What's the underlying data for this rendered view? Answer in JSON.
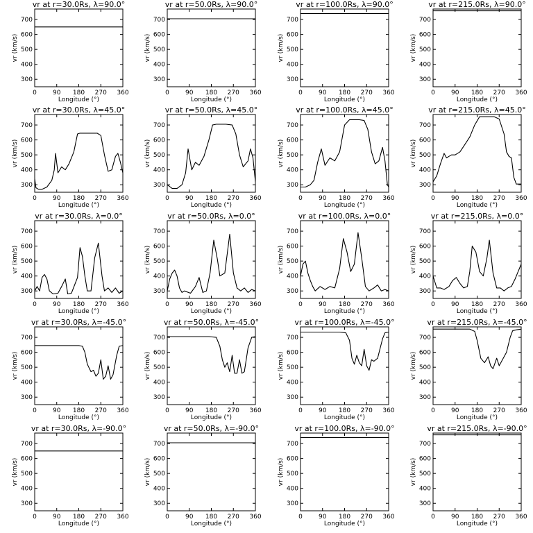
{
  "figure": {
    "y_axis": {
      "ticks": [
        300,
        400,
        500,
        600,
        700
      ],
      "range": [
        250,
        770
      ]
    },
    "x_axis": {
      "ticks": [
        0,
        90,
        180,
        270,
        360
      ],
      "range": [
        0,
        360
      ]
    },
    "xlabel": "Longitude (°)",
    "ylabel": "vr (km/s)",
    "line_color": "#000000",
    "background": "#ffffff"
  },
  "chart_data": [
    {
      "type": "line",
      "title": "vr at r=30.0Rs, λ=90.0°",
      "xlabel": "Longitude (°)",
      "ylabel": "vr (km/s)",
      "xlim": [
        0,
        360
      ],
      "ylim": [
        250,
        770
      ],
      "x": [
        0,
        360
      ],
      "y": [
        650,
        650
      ]
    },
    {
      "type": "line",
      "title": "vr at r=50.0Rs, λ=90.0°",
      "xlabel": "Longitude (°)",
      "ylabel": "vr (km/s)",
      "xlim": [
        0,
        360
      ],
      "ylim": [
        250,
        770
      ],
      "x": [
        0,
        360
      ],
      "y": [
        705,
        705
      ]
    },
    {
      "type": "line",
      "title": "vr at r=100.0Rs, λ=90.0°",
      "xlabel": "Longitude (°)",
      "ylabel": "vr (km/s)",
      "xlim": [
        0,
        360
      ],
      "ylim": [
        250,
        770
      ],
      "x": [
        0,
        360
      ],
      "y": [
        740,
        740
      ]
    },
    {
      "type": "line",
      "title": "vr at r=215.0Rs, λ=90.0°",
      "xlabel": "Longitude (°)",
      "ylabel": "vr (km/s)",
      "xlim": [
        0,
        360
      ],
      "ylim": [
        250,
        770
      ],
      "x": [
        0,
        360
      ],
      "y": [
        758,
        758
      ]
    },
    {
      "type": "line",
      "title": "vr at r=30.0Rs, λ=45.0°",
      "xlabel": "Longitude (°)",
      "ylabel": "vr (km/s)",
      "xlim": [
        0,
        360
      ],
      "ylim": [
        250,
        770
      ],
      "x": [
        0,
        5,
        15,
        30,
        50,
        70,
        80,
        85,
        95,
        110,
        125,
        140,
        160,
        175,
        185,
        200,
        230,
        255,
        270,
        285,
        300,
        315,
        330,
        340,
        350,
        360
      ],
      "y": [
        340,
        280,
        270,
        270,
        285,
        330,
        400,
        510,
        380,
        420,
        400,
        440,
        520,
        640,
        645,
        645,
        645,
        645,
        630,
        500,
        390,
        400,
        490,
        510,
        450,
        380
      ]
    },
    {
      "type": "line",
      "title": "vr at r=50.0Rs, λ=45.0°",
      "xlabel": "Longitude (°)",
      "ylabel": "vr (km/s)",
      "xlim": [
        0,
        360
      ],
      "ylim": [
        250,
        770
      ],
      "x": [
        0,
        20,
        40,
        60,
        75,
        85,
        100,
        115,
        130,
        150,
        170,
        185,
        200,
        240,
        265,
        280,
        295,
        310,
        330,
        340,
        350,
        360
      ],
      "y": [
        300,
        275,
        275,
        300,
        380,
        540,
        400,
        450,
        430,
        490,
        600,
        700,
        705,
        705,
        700,
        640,
        500,
        420,
        460,
        540,
        480,
        320
      ]
    },
    {
      "type": "line",
      "title": "vr at r=100.0Rs, λ=45.0°",
      "xlabel": "Longitude (°)",
      "ylabel": "vr (km/s)",
      "xlim": [
        0,
        360
      ],
      "ylim": [
        250,
        770
      ],
      "x": [
        0,
        20,
        40,
        55,
        70,
        85,
        100,
        120,
        140,
        160,
        180,
        200,
        240,
        260,
        275,
        290,
        305,
        320,
        335,
        345,
        355,
        360
      ],
      "y": [
        285,
        285,
        300,
        330,
        450,
        540,
        430,
        480,
        460,
        520,
        700,
        735,
        735,
        730,
        670,
        520,
        440,
        460,
        550,
        460,
        300,
        285
      ]
    },
    {
      "type": "line",
      "title": "vr at r=215.0Rs, λ=45.0°",
      "xlabel": "Longitude (°)",
      "ylabel": "vr (km/s)",
      "xlim": [
        0,
        360
      ],
      "ylim": [
        250,
        770
      ],
      "x": [
        0,
        15,
        30,
        45,
        55,
        65,
        75,
        90,
        110,
        130,
        150,
        170,
        190,
        250,
        270,
        290,
        300,
        310,
        320,
        330,
        340,
        360
      ],
      "y": [
        320,
        360,
        440,
        510,
        480,
        490,
        500,
        500,
        520,
        570,
        620,
        700,
        755,
        755,
        740,
        640,
        520,
        490,
        480,
        350,
        305,
        305
      ]
    },
    {
      "type": "line",
      "title": "vr at r=30.0Rs, λ=0.0°",
      "xlabel": "Longitude (°)",
      "ylabel": "vr (km/s)",
      "xlim": [
        0,
        360
      ],
      "ylim": [
        250,
        770
      ],
      "x": [
        0,
        10,
        20,
        30,
        40,
        50,
        60,
        75,
        95,
        110,
        125,
        135,
        150,
        175,
        185,
        195,
        205,
        215,
        230,
        245,
        260,
        275,
        285,
        300,
        315,
        330,
        345,
        360
      ],
      "y": [
        300,
        330,
        300,
        390,
        410,
        380,
        300,
        280,
        285,
        330,
        380,
        280,
        285,
        390,
        590,
        530,
        400,
        300,
        300,
        520,
        620,
        400,
        300,
        320,
        290,
        320,
        285,
        300
      ]
    },
    {
      "type": "line",
      "title": "vr at r=50.0Rs, λ=0.0°",
      "xlabel": "Longitude (°)",
      "ylabel": "vr (km/s)",
      "xlim": [
        0,
        360
      ],
      "ylim": [
        250,
        770
      ],
      "x": [
        0,
        10,
        20,
        30,
        40,
        50,
        60,
        70,
        95,
        115,
        130,
        145,
        160,
        175,
        190,
        205,
        215,
        235,
        255,
        270,
        285,
        300,
        315,
        330,
        345,
        360
      ],
      "y": [
        300,
        380,
        420,
        440,
        400,
        320,
        290,
        300,
        285,
        330,
        390,
        290,
        300,
        420,
        640,
        510,
        400,
        420,
        680,
        420,
        320,
        300,
        320,
        290,
        310,
        300
      ]
    },
    {
      "type": "line",
      "title": "vr at r=100.0Rs, λ=0.0°",
      "xlabel": "Longitude (°)",
      "ylabel": "vr (km/s)",
      "xlim": [
        0,
        360
      ],
      "ylim": [
        250,
        770
      ],
      "x": [
        0,
        10,
        20,
        30,
        40,
        50,
        60,
        80,
        100,
        120,
        140,
        160,
        175,
        190,
        205,
        220,
        235,
        250,
        265,
        280,
        300,
        315,
        330,
        345,
        360
      ],
      "y": [
        400,
        480,
        500,
        420,
        370,
        330,
        300,
        330,
        310,
        330,
        320,
        450,
        650,
        560,
        430,
        480,
        690,
        520,
        330,
        300,
        320,
        340,
        300,
        310,
        300
      ]
    },
    {
      "type": "line",
      "title": "vr at r=215.0Rs, λ=0.0°",
      "xlabel": "Longitude (°)",
      "ylabel": "vr (km/s)",
      "xlim": [
        0,
        360
      ],
      "ylim": [
        250,
        770
      ],
      "x": [
        0,
        15,
        30,
        45,
        65,
        80,
        95,
        110,
        125,
        140,
        150,
        160,
        175,
        190,
        205,
        220,
        230,
        245,
        260,
        275,
        290,
        305,
        320,
        335,
        345,
        360
      ],
      "y": [
        400,
        320,
        320,
        310,
        330,
        370,
        390,
        350,
        320,
        330,
        430,
        600,
        560,
        430,
        400,
        520,
        640,
        420,
        320,
        320,
        300,
        320,
        330,
        380,
        420,
        480
      ]
    },
    {
      "type": "line",
      "title": "vr at r=30.0Rs, λ=-45.0°",
      "xlabel": "Longitude (°)",
      "ylabel": "vr (km/s)",
      "xlim": [
        0,
        360
      ],
      "ylim": [
        250,
        770
      ],
      "x": [
        0,
        150,
        180,
        195,
        205,
        215,
        230,
        240,
        250,
        260,
        270,
        280,
        290,
        300,
        310,
        320,
        335,
        345,
        360
      ],
      "y": [
        645,
        645,
        645,
        640,
        600,
        520,
        470,
        480,
        440,
        460,
        550,
        420,
        440,
        510,
        420,
        450,
        580,
        640,
        645
      ]
    },
    {
      "type": "line",
      "title": "vr at r=50.0Rs, λ=-45.0°",
      "xlabel": "Longitude (°)",
      "ylabel": "vr (km/s)",
      "xlim": [
        0,
        360
      ],
      "ylim": [
        250,
        770
      ],
      "x": [
        0,
        170,
        200,
        215,
        225,
        235,
        245,
        255,
        265,
        275,
        285,
        295,
        305,
        315,
        330,
        345,
        360
      ],
      "y": [
        705,
        705,
        700,
        640,
        550,
        500,
        530,
        470,
        580,
        460,
        460,
        550,
        460,
        470,
        630,
        700,
        705
      ]
    },
    {
      "type": "line",
      "title": "vr at r=100.0Rs, λ=-45.0°",
      "xlabel": "Longitude (°)",
      "ylabel": "vr (km/s)",
      "xlim": [
        0,
        360
      ],
      "ylim": [
        250,
        770
      ],
      "x": [
        0,
        160,
        185,
        200,
        210,
        220,
        230,
        240,
        250,
        260,
        270,
        280,
        290,
        300,
        315,
        335,
        345,
        360
      ],
      "y": [
        735,
        735,
        730,
        680,
        560,
        520,
        580,
        530,
        510,
        620,
        510,
        480,
        550,
        540,
        560,
        690,
        730,
        735
      ]
    },
    {
      "type": "line",
      "title": "vr at r=215.0Rs, λ=-45.0°",
      "xlabel": "Longitude (°)",
      "ylabel": "vr (km/s)",
      "xlim": [
        0,
        360
      ],
      "ylim": [
        250,
        770
      ],
      "x": [
        0,
        150,
        170,
        180,
        195,
        210,
        225,
        235,
        245,
        260,
        270,
        280,
        300,
        315,
        325,
        340,
        360
      ],
      "y": [
        755,
        755,
        740,
        680,
        560,
        530,
        570,
        510,
        490,
        560,
        510,
        540,
        600,
        700,
        745,
        750,
        755
      ]
    },
    {
      "type": "line",
      "title": "vr at r=30.0Rs, λ=-90.0°",
      "xlabel": "Longitude (°)",
      "ylabel": "vr (km/s)",
      "xlim": [
        0,
        360
      ],
      "ylim": [
        250,
        770
      ],
      "x": [
        0,
        360
      ],
      "y": [
        650,
        650
      ]
    },
    {
      "type": "line",
      "title": "vr at r=50.0Rs, λ=-90.0°",
      "xlabel": "Longitude (°)",
      "ylabel": "vr (km/s)",
      "xlim": [
        0,
        360
      ],
      "ylim": [
        250,
        770
      ],
      "x": [
        0,
        360
      ],
      "y": [
        705,
        705
      ]
    },
    {
      "type": "line",
      "title": "vr at r=100.0Rs, λ=-90.0°",
      "xlabel": "Longitude (°)",
      "ylabel": "vr (km/s)",
      "xlim": [
        0,
        360
      ],
      "ylim": [
        250,
        770
      ],
      "x": [
        0,
        360
      ],
      "y": [
        740,
        740
      ]
    },
    {
      "type": "line",
      "title": "vr at r=215.0Rs, λ=-90.0°",
      "xlabel": "Longitude (°)",
      "ylabel": "vr (km/s)",
      "xlim": [
        0,
        360
      ],
      "ylim": [
        250,
        770
      ],
      "x": [
        0,
        360
      ],
      "y": [
        758,
        758
      ]
    }
  ]
}
